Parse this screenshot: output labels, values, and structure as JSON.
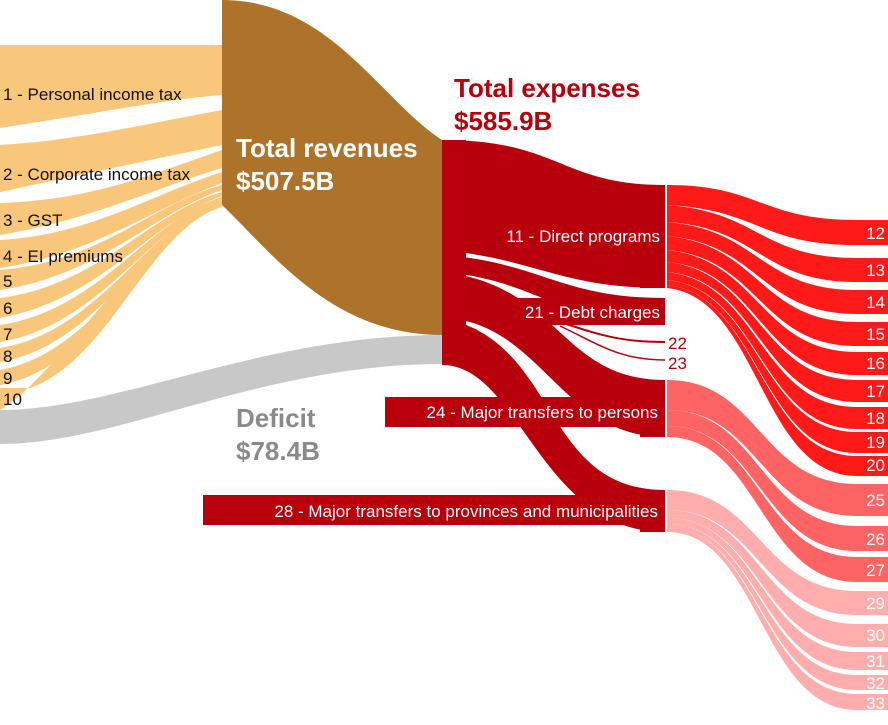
{
  "colors": {
    "revenue_light": "#f9c77b",
    "revenue_node": "#ad732b",
    "deficit": "#c8c8c8",
    "expense_node": "#b7000c",
    "direct_programs": "#ff1a1a",
    "transfers_persons": "#ff6464",
    "transfers_provinces": "#ffadad",
    "expenses_title": "#b7000c",
    "deficit_title": "#8a8a8a"
  },
  "revenue_sources": [
    {
      "label": "1 - Personal income tax"
    },
    {
      "label": "2 - Corporate income tax"
    },
    {
      "label": "3 - GST"
    },
    {
      "label": "4 - EI premiums"
    },
    {
      "label": "5"
    },
    {
      "label": "6"
    },
    {
      "label": "7"
    },
    {
      "label": "8"
    },
    {
      "label": "9"
    },
    {
      "label": "10"
    }
  ],
  "total_revenues": {
    "title": "Total revenues",
    "value": "$507.5B"
  },
  "deficit": {
    "title": "Deficit",
    "value": "$78.4B"
  },
  "total_expenses": {
    "title": "Total expenses",
    "value": "$585.9B"
  },
  "expense_categories": [
    {
      "label": "11 - Direct programs"
    },
    {
      "label": "21 - Debt charges"
    },
    {
      "label": "24 - Major transfers to persons"
    },
    {
      "label": "28 - Major transfers to provinces and municipalities"
    }
  ],
  "debt_sub": [
    {
      "label": "22"
    },
    {
      "label": "23"
    }
  ],
  "outflows": [
    {
      "label": "12"
    },
    {
      "label": "13"
    },
    {
      "label": "14"
    },
    {
      "label": "15"
    },
    {
      "label": "16"
    },
    {
      "label": "17"
    },
    {
      "label": "18"
    },
    {
      "label": "19"
    },
    {
      "label": "20"
    },
    {
      "label": "25"
    },
    {
      "label": "26"
    },
    {
      "label": "27"
    },
    {
      "label": "29"
    },
    {
      "label": "30"
    },
    {
      "label": "31"
    },
    {
      "label": "32"
    },
    {
      "label": "33"
    }
  ]
}
